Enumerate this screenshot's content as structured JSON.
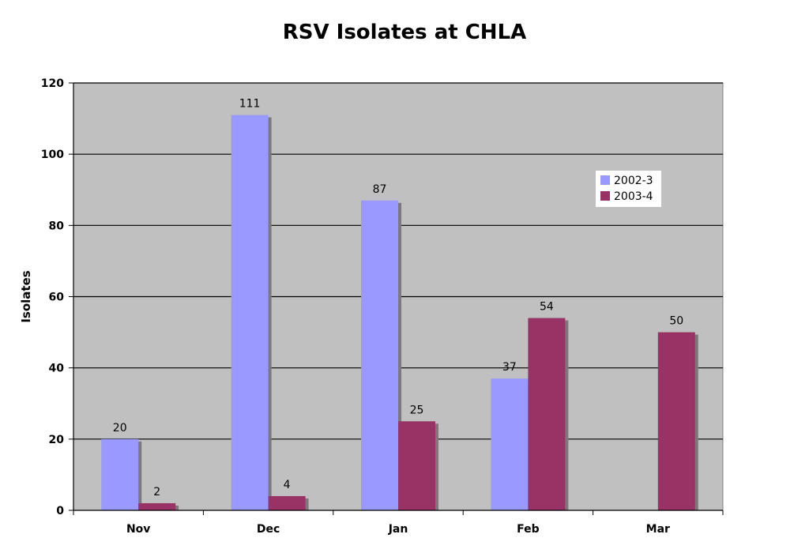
{
  "chart_data": {
    "type": "bar",
    "title": "RSV Isolates at CHLA",
    "xlabel": "",
    "ylabel": "Isolates",
    "ylim": [
      0,
      120
    ],
    "yticks": [
      0,
      20,
      40,
      60,
      80,
      100,
      120
    ],
    "categories": [
      "Nov",
      "Dec",
      "Jan",
      "Feb",
      "Mar"
    ],
    "series": [
      {
        "name": "2002-3",
        "values": [
          20,
          111,
          87,
          37,
          null
        ],
        "color": "#9999FF"
      },
      {
        "name": "2003-4",
        "values": [
          2,
          4,
          25,
          54,
          50
        ],
        "color": "#993366"
      }
    ],
    "grid": true,
    "plot_background": "#C0C0C0",
    "legend_position": "top-right"
  }
}
